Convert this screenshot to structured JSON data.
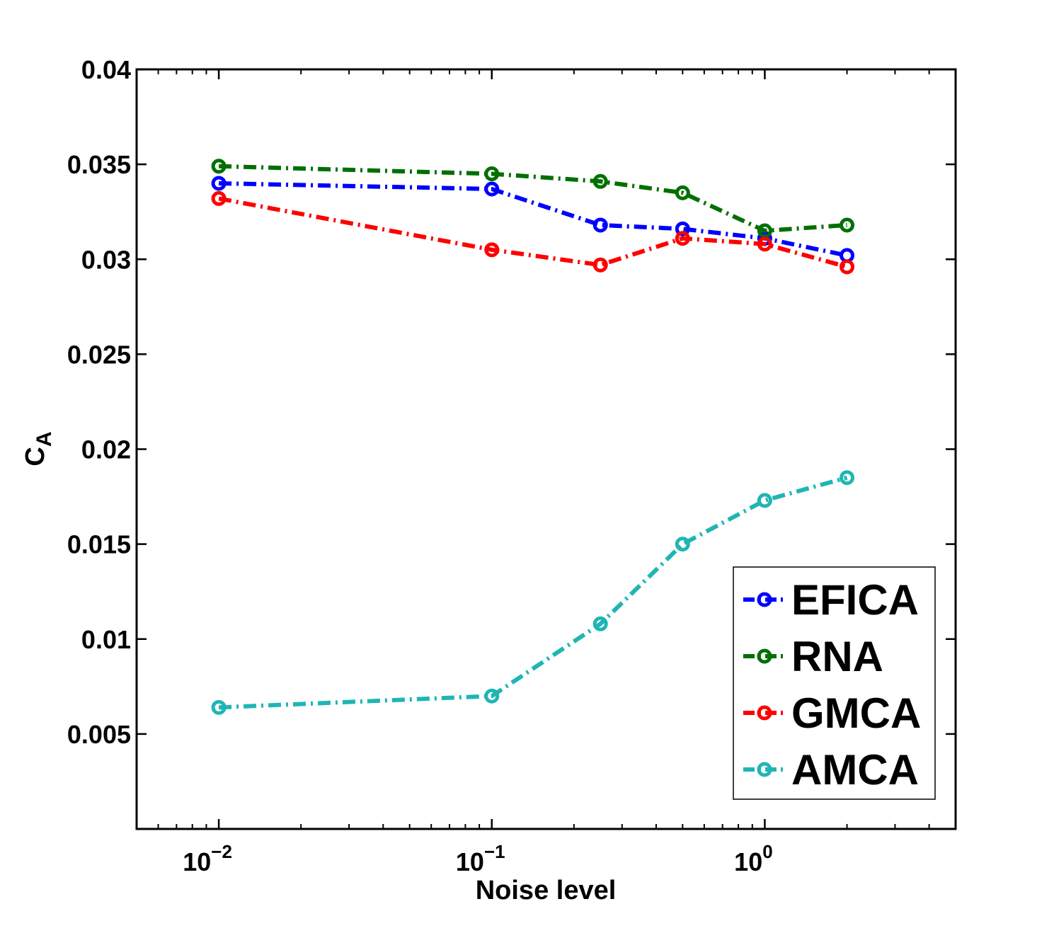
{
  "chart_data": {
    "type": "line",
    "title": "",
    "xlabel": "Noise level",
    "ylabel_main": "C",
    "ylabel_sub": "A",
    "xscale": "log",
    "xlim": [
      0.005,
      5
    ],
    "ylim": [
      0,
      0.04
    ],
    "x_ticks": [
      {
        "value": 0.01,
        "base": "10",
        "exp": "−2"
      },
      {
        "value": 0.1,
        "base": "10",
        "exp": "−1"
      },
      {
        "value": 1,
        "base": "10",
        "exp": "0"
      }
    ],
    "y_ticks": [
      {
        "value": 0.005,
        "label": "0.005"
      },
      {
        "value": 0.01,
        "label": "0.01"
      },
      {
        "value": 0.015,
        "label": "0.015"
      },
      {
        "value": 0.02,
        "label": "0.02"
      },
      {
        "value": 0.025,
        "label": "0.025"
      },
      {
        "value": 0.03,
        "label": "0.03"
      },
      {
        "value": 0.035,
        "label": "0.035"
      },
      {
        "value": 0.04,
        "label": "0.04"
      }
    ],
    "x": [
      0.01,
      0.1,
      0.25,
      0.5,
      1,
      2
    ],
    "series": [
      {
        "name": "EFICA",
        "color": "#0000ff",
        "values": [
          0.034,
          0.0337,
          0.0318,
          0.0316,
          0.0311,
          0.0302
        ]
      },
      {
        "name": "RNA",
        "color": "#007000",
        "values": [
          0.0349,
          0.0345,
          0.0341,
          0.0335,
          0.0315,
          0.0318
        ]
      },
      {
        "name": "GMCA",
        "color": "#ff0000",
        "values": [
          0.0332,
          0.0305,
          0.0297,
          0.0311,
          0.0308,
          0.0296
        ]
      },
      {
        "name": "AMCA",
        "color": "#20b5b5",
        "values": [
          0.0064,
          0.007,
          0.0108,
          0.015,
          0.0173,
          0.0185
        ]
      }
    ],
    "legend_position": "bottom-right",
    "grid": false
  }
}
